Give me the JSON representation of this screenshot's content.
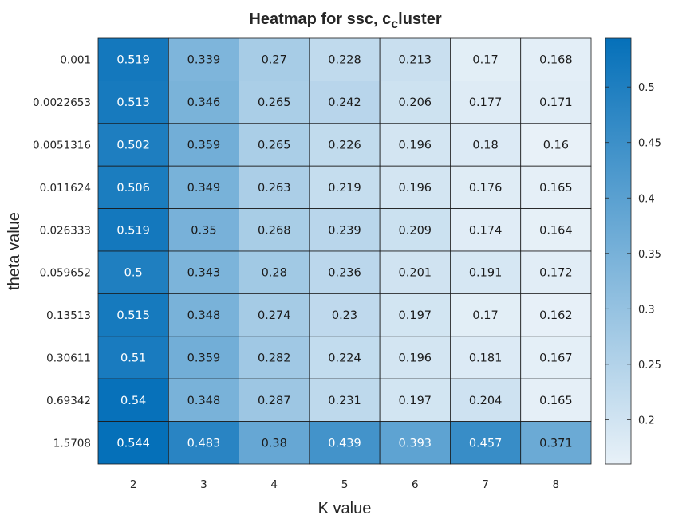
{
  "chart_data": {
    "type": "heatmap",
    "title_main": "Heatmap for ssc, c",
    "title_sub": "c",
    "title_rest": "luster",
    "xlabel": "K value",
    "ylabel": "theta value",
    "x_categories": [
      "2",
      "3",
      "4",
      "5",
      "6",
      "7",
      "8"
    ],
    "y_categories": [
      "0.001",
      "0.0022653",
      "0.0051316",
      "0.011624",
      "0.026333",
      "0.059652",
      "0.13513",
      "0.30611",
      "0.69342",
      "1.5708"
    ],
    "values": [
      [
        0.519,
        0.339,
        0.27,
        0.228,
        0.213,
        0.17,
        0.168
      ],
      [
        0.513,
        0.346,
        0.265,
        0.242,
        0.206,
        0.177,
        0.171
      ],
      [
        0.502,
        0.359,
        0.265,
        0.226,
        0.196,
        0.18,
        0.16
      ],
      [
        0.506,
        0.349,
        0.263,
        0.219,
        0.196,
        0.176,
        0.165
      ],
      [
        0.519,
        0.35,
        0.268,
        0.239,
        0.209,
        0.174,
        0.164
      ],
      [
        0.5,
        0.343,
        0.28,
        0.236,
        0.201,
        0.191,
        0.172
      ],
      [
        0.515,
        0.348,
        0.274,
        0.23,
        0.197,
        0.17,
        0.162
      ],
      [
        0.51,
        0.359,
        0.282,
        0.224,
        0.196,
        0.181,
        0.167
      ],
      [
        0.54,
        0.348,
        0.287,
        0.231,
        0.197,
        0.204,
        0.165
      ],
      [
        0.544,
        0.483,
        0.38,
        0.439,
        0.393,
        0.457,
        0.371
      ]
    ],
    "colorbar": {
      "min": 0.16,
      "max": 0.544,
      "ticks": [
        0.2,
        0.25,
        0.3,
        0.35,
        0.4,
        0.45,
        0.5
      ],
      "tick_labels": [
        "0.2",
        "0.25",
        "0.3",
        "0.35",
        "0.4",
        "0.45",
        "0.5"
      ]
    },
    "colors": {
      "low": "#e8f1f8",
      "high": "#0570b9",
      "text_dark": "#1a1a1a",
      "text_light": "#ffffff",
      "grid": "#1a1a1a"
    }
  }
}
